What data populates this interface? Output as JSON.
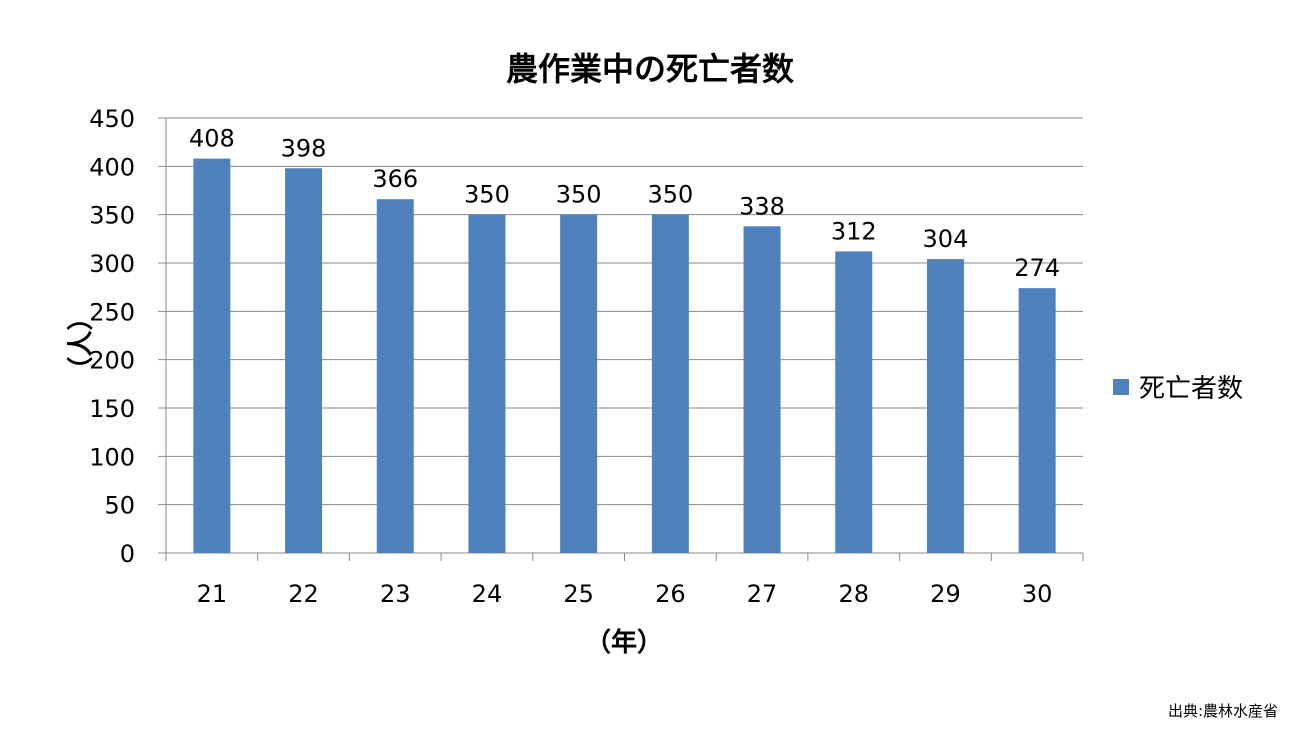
{
  "chart_data": {
    "type": "bar",
    "title": "農作業中の死亡者数",
    "xlabel": "（年）",
    "ylabel": "（人）",
    "categories": [
      "21",
      "22",
      "23",
      "24",
      "25",
      "26",
      "27",
      "28",
      "29",
      "30"
    ],
    "series": [
      {
        "name": "死亡者数",
        "values": [
          408,
          398,
          366,
          350,
          350,
          350,
          338,
          312,
          304,
          274
        ],
        "color": "#4F81BD"
      }
    ],
    "ylim": [
      0,
      450
    ],
    "yticks": [
      0,
      50,
      100,
      150,
      200,
      250,
      300,
      350,
      400,
      450
    ],
    "grid": true,
    "legend": "right",
    "data_labels": true
  },
  "source": "出典:農林水産省"
}
